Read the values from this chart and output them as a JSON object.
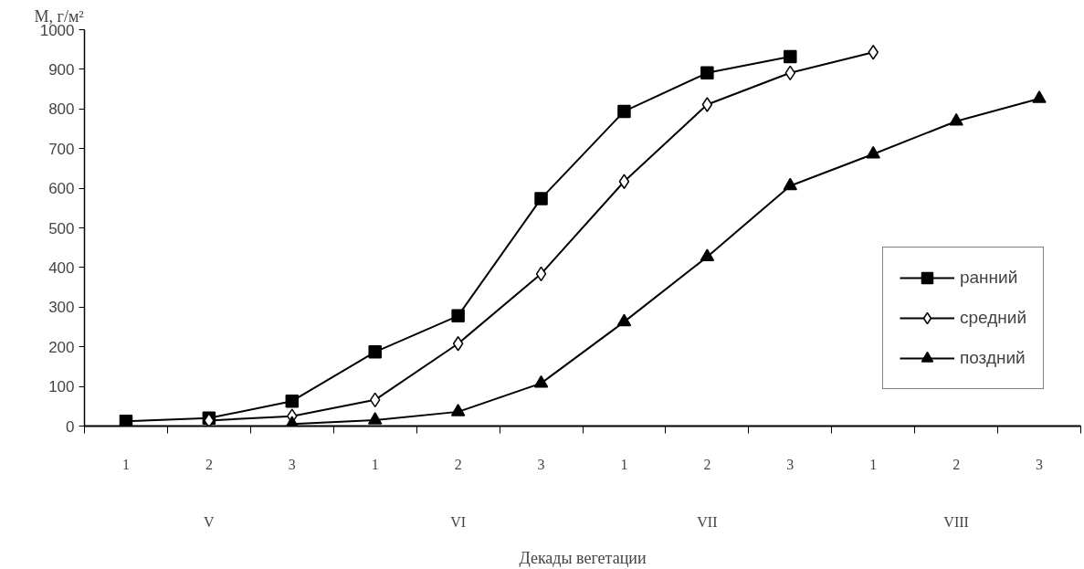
{
  "chart_data": {
    "type": "line",
    "ylabel": "M, г/м²",
    "xlabel": "Декады вегетации",
    "categories": [
      "1",
      "2",
      "3",
      "1",
      "2",
      "3",
      "1",
      "2",
      "3",
      "1",
      "2",
      "3"
    ],
    "annotations": [
      "V",
      "VI",
      "VII",
      "VIII"
    ],
    "series": [
      {
        "name": "ранний",
        "color": "#000000",
        "marker": "square",
        "values": [
          12,
          20,
          63,
          187,
          278,
          574,
          794,
          891,
          932,
          null,
          null,
          null
        ]
      },
      {
        "name": "средний",
        "color": "#000000",
        "marker": "diamond",
        "values": [
          null,
          14,
          25,
          66,
          208,
          384,
          617,
          811,
          891,
          943,
          null,
          null
        ]
      },
      {
        "name": "поздний",
        "color": "#000000",
        "marker": "triangle",
        "values": [
          null,
          null,
          5,
          15,
          36,
          108,
          263,
          427,
          606,
          686,
          769,
          826
        ]
      }
    ],
    "ylim": [
      0,
      1000
    ],
    "yticks": [
      0,
      100,
      200,
      300,
      400,
      500,
      600,
      700,
      800,
      900,
      1000
    ],
    "grid": false,
    "legend": "bottom right",
    "line_style": "solid"
  }
}
